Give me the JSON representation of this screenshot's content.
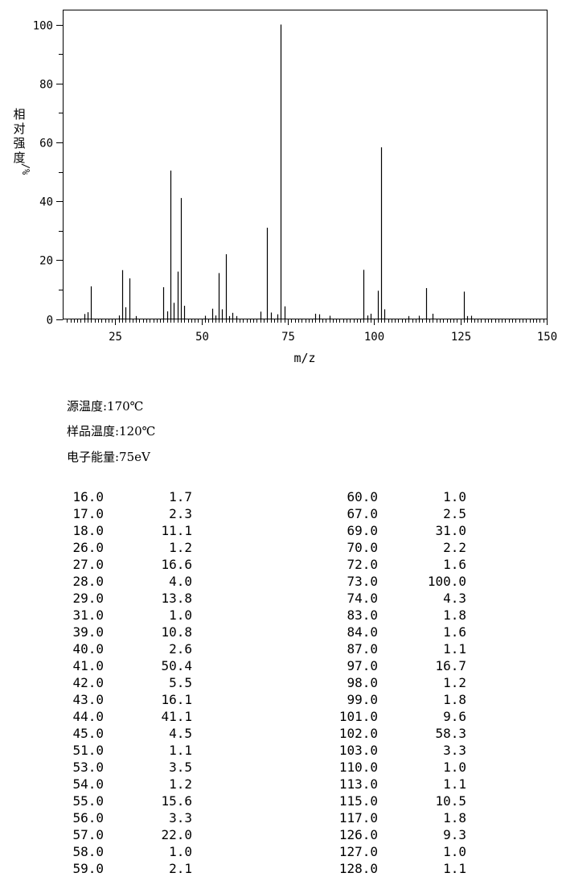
{
  "chart_data": {
    "type": "bar",
    "xlabel": "m/z",
    "ylabel": "相对强度/%",
    "xlim": [
      10,
      150
    ],
    "ylim": [
      0,
      100
    ],
    "xticks": [
      25,
      50,
      75,
      100,
      125,
      150
    ],
    "yticks": [
      0,
      20,
      40,
      60,
      80,
      100
    ],
    "x": [
      16,
      17,
      18,
      26,
      27,
      28,
      29,
      31,
      39,
      40,
      41,
      42,
      43,
      44,
      45,
      51,
      53,
      54,
      55,
      56,
      57,
      58,
      59,
      60,
      67,
      69,
      70,
      72,
      73,
      74,
      83,
      84,
      87,
      97,
      98,
      99,
      101,
      102,
      103,
      110,
      113,
      115,
      117,
      126,
      127,
      128
    ],
    "values": [
      1.7,
      2.3,
      11.1,
      1.2,
      16.6,
      4.0,
      13.8,
      1.0,
      10.8,
      2.6,
      50.4,
      5.5,
      16.1,
      41.1,
      4.5,
      1.1,
      3.5,
      1.2,
      15.6,
      3.3,
      22.0,
      1.0,
      2.1,
      1.0,
      2.5,
      31.0,
      2.2,
      1.6,
      100.0,
      4.3,
      1.8,
      1.6,
      1.1,
      16.7,
      1.2,
      1.8,
      9.6,
      58.3,
      3.3,
      1.0,
      1.1,
      10.5,
      1.8,
      9.3,
      1.0,
      1.1
    ]
  },
  "conditions": {
    "source_temp": "源温度:170℃",
    "sample_temp": "样品温度:120℃",
    "electron_energy": "电子能量:75eV"
  },
  "table": {
    "left": [
      [
        "16.0",
        "1.7"
      ],
      [
        "17.0",
        "2.3"
      ],
      [
        "18.0",
        "11.1"
      ],
      [
        "26.0",
        "1.2"
      ],
      [
        "27.0",
        "16.6"
      ],
      [
        "28.0",
        "4.0"
      ],
      [
        "29.0",
        "13.8"
      ],
      [
        "31.0",
        "1.0"
      ],
      [
        "39.0",
        "10.8"
      ],
      [
        "40.0",
        "2.6"
      ],
      [
        "41.0",
        "50.4"
      ],
      [
        "42.0",
        "5.5"
      ],
      [
        "43.0",
        "16.1"
      ],
      [
        "44.0",
        "41.1"
      ],
      [
        "45.0",
        "4.5"
      ],
      [
        "51.0",
        "1.1"
      ],
      [
        "53.0",
        "3.5"
      ],
      [
        "54.0",
        "1.2"
      ],
      [
        "55.0",
        "15.6"
      ],
      [
        "56.0",
        "3.3"
      ],
      [
        "57.0",
        "22.0"
      ],
      [
        "58.0",
        "1.0"
      ],
      [
        "59.0",
        "2.1"
      ]
    ],
    "right": [
      [
        "60.0",
        "1.0"
      ],
      [
        "67.0",
        "2.5"
      ],
      [
        "69.0",
        "31.0"
      ],
      [
        "70.0",
        "2.2"
      ],
      [
        "72.0",
        "1.6"
      ],
      [
        "73.0",
        "100.0"
      ],
      [
        "74.0",
        "4.3"
      ],
      [
        "83.0",
        "1.8"
      ],
      [
        "84.0",
        "1.6"
      ],
      [
        "87.0",
        "1.1"
      ],
      [
        "97.0",
        "16.7"
      ],
      [
        "98.0",
        "1.2"
      ],
      [
        "99.0",
        "1.8"
      ],
      [
        "101.0",
        "9.6"
      ],
      [
        "102.0",
        "58.3"
      ],
      [
        "103.0",
        "3.3"
      ],
      [
        "110.0",
        "1.0"
      ],
      [
        "113.0",
        "1.1"
      ],
      [
        "115.0",
        "10.5"
      ],
      [
        "117.0",
        "1.8"
      ],
      [
        "126.0",
        "9.3"
      ],
      [
        "127.0",
        "1.0"
      ],
      [
        "128.0",
        "1.1"
      ]
    ]
  }
}
